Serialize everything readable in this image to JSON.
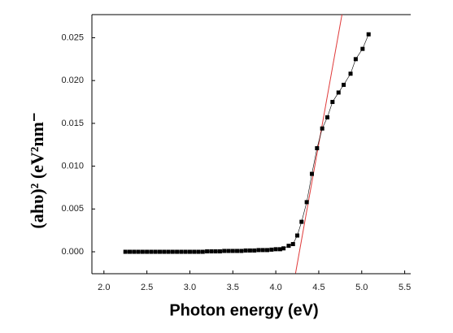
{
  "chart_data": {
    "type": "scatter",
    "x_label": "Photon energy (eV)",
    "y_label": "(ahυ)² (eV²nm⁻",
    "color": "#000000",
    "x": [
      2.25,
      2.3,
      2.35,
      2.4,
      2.45,
      2.5,
      2.55,
      2.6,
      2.65,
      2.7,
      2.75,
      2.8,
      2.85,
      2.9,
      2.95,
      3.0,
      3.05,
      3.1,
      3.15,
      3.2,
      3.25,
      3.3,
      3.35,
      3.4,
      3.45,
      3.5,
      3.55,
      3.6,
      3.65,
      3.7,
      3.75,
      3.8,
      3.85,
      3.9,
      3.95,
      4.0,
      4.05,
      4.09,
      4.15,
      4.2,
      4.25,
      4.3,
      4.36,
      4.42,
      4.48,
      4.54,
      4.6,
      4.66,
      4.73,
      4.79,
      4.87,
      4.93,
      5.01,
      5.08
    ],
    "values": [
      0,
      0,
      0,
      0,
      0,
      0,
      0,
      0,
      0,
      0,
      0,
      0,
      0,
      0,
      0,
      0,
      0,
      0,
      0,
      5e-05,
      5e-05,
      5e-05,
      5e-05,
      0.0001,
      0.0001,
      0.0001,
      0.0001,
      0.0001,
      0.00015,
      0.00015,
      0.00015,
      0.0002,
      0.0002,
      0.0002,
      0.00025,
      0.0003,
      0.0003,
      0.0004,
      0.0007,
      0.0009,
      0.0019,
      0.0035,
      0.0058,
      0.0091,
      0.0121,
      0.0144,
      0.0157,
      0.0175,
      0.0186,
      0.0195,
      0.0208,
      0.0225,
      0.0237,
      0.0254
    ],
    "fit_line": {
      "color": "#e03a3a",
      "x": [
        4.23,
        4.77
      ],
      "values": [
        -0.0025,
        0.0277
      ]
    },
    "xlim": [
      1.86,
      5.57
    ],
    "ylim": [
      -0.00256,
      0.0277
    ],
    "xticks": [
      {
        "value": 2,
        "label": "2.0"
      },
      {
        "value": 2.5,
        "label": "2.5"
      },
      {
        "value": 3,
        "label": "3.0"
      },
      {
        "value": 3.5,
        "label": "3.5"
      },
      {
        "value": 4,
        "label": "4.0"
      },
      {
        "value": 4.5,
        "label": "4.5"
      },
      {
        "value": 5,
        "label": "5.0"
      },
      {
        "value": 5.5,
        "label": "5.5"
      }
    ],
    "yticks": [
      {
        "value": 0,
        "label": "0.000"
      },
      {
        "value": 0.005,
        "label": "0.005"
      },
      {
        "value": 0.01,
        "label": "0.010"
      },
      {
        "value": 0.015,
        "label": "0.015"
      },
      {
        "value": 0.02,
        "label": "0.020"
      },
      {
        "value": 0.025,
        "label": "0.025"
      }
    ]
  }
}
